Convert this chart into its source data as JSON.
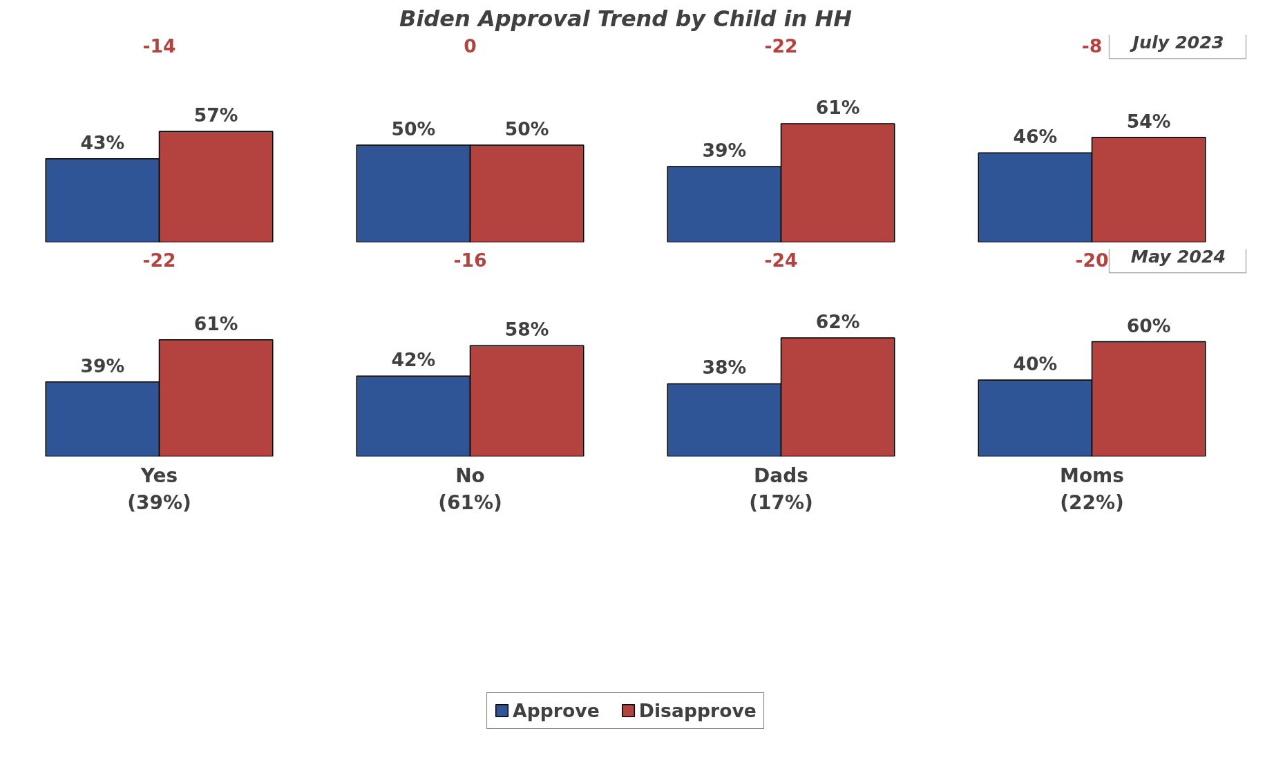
{
  "chart_data": [
    {
      "type": "bar",
      "title": "Biden Approval Trend by Child in HH",
      "subtitle": "July 2023",
      "categories": [
        null,
        null,
        null,
        null
      ],
      "series": [
        {
          "color": "#2f5597",
          "values": [
            43,
            50,
            39,
            46
          ],
          "value_labels": [
            "43%",
            "50%",
            "39%",
            "46%"
          ]
        },
        {
          "color": "#b4423f",
          "values": [
            57,
            50,
            61,
            54
          ],
          "value_labels": [
            "57%",
            "50%",
            "61%",
            "54%"
          ]
        }
      ],
      "tick_labels": false,
      "grid": false,
      "annotations": [
        "-14",
        "0",
        "-22",
        "-8"
      ]
    },
    {
      "type": "bar",
      "subtitle": "May 2024",
      "categories": [
        "Yes\n(39%)",
        "No\n(61%)",
        "Dads\n(17%)",
        "Moms\n(22%)"
      ],
      "series": [
        {
          "name": "Approve",
          "color": "#2f5597",
          "values": [
            39,
            42,
            38,
            40
          ],
          "value_labels": [
            "39%",
            "42%",
            "38%",
            "40%"
          ]
        },
        {
          "name": "Disapprove",
          "color": "#b4423f",
          "values": [
            61,
            58,
            62,
            60
          ],
          "value_labels": [
            "61%",
            "58%",
            "62%",
            "60%"
          ]
        }
      ],
      "grid": false,
      "legend": "bottom",
      "annotations": [
        "-22",
        "-16",
        "-24",
        "-20"
      ]
    }
  ]
}
